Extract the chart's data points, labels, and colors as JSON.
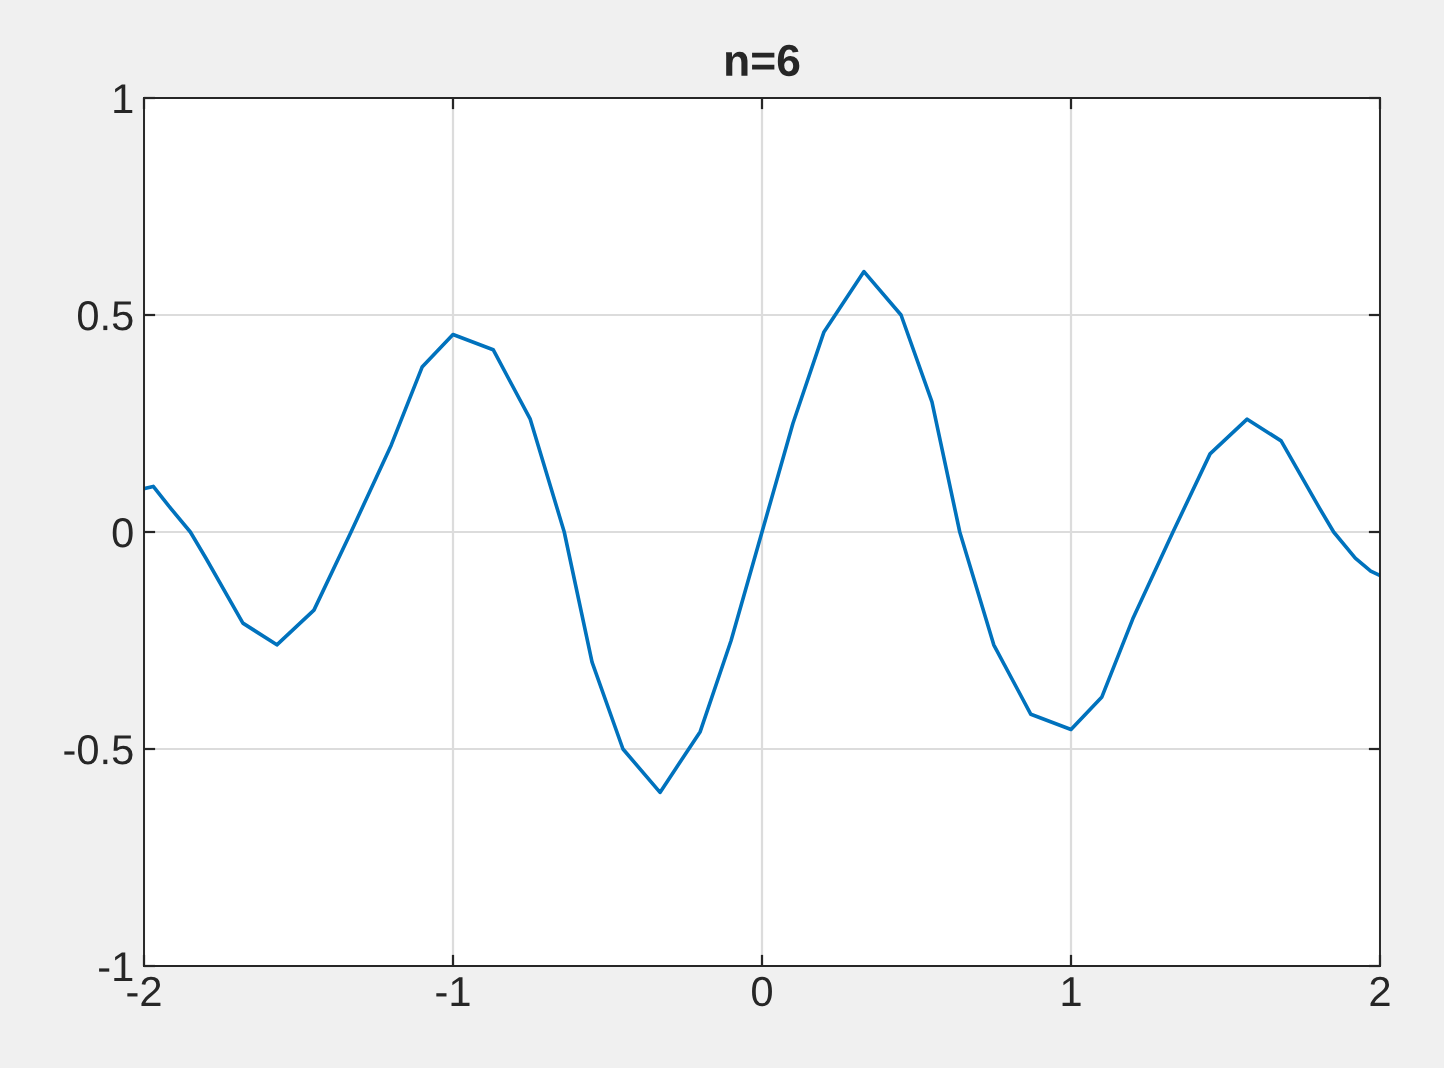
{
  "chart_data": {
    "type": "line",
    "title": "n=6",
    "x": [
      -2,
      -1.97,
      -1.92,
      -1.85,
      -1.8,
      -1.68,
      -1.57,
      -1.45,
      -1.33,
      -1.2,
      -1.1,
      -1,
      -0.87,
      -0.75,
      -0.64,
      -0.55,
      -0.45,
      -0.33,
      -0.2,
      -0.1,
      0,
      0.1,
      0.2,
      0.33,
      0.45,
      0.55,
      0.64,
      0.75,
      0.87,
      1,
      1.1,
      1.2,
      1.33,
      1.45,
      1.57,
      1.68,
      1.8,
      1.85,
      1.92,
      1.97,
      2
    ],
    "series": [
      {
        "color": "#0072bd",
        "values": [
          0.1,
          0.105,
          0.06,
          0,
          -0.06,
          -0.21,
          -0.26,
          -0.18,
          0,
          0.2,
          0.38,
          0.455,
          0.42,
          0.26,
          0,
          -0.3,
          -0.5,
          -0.6,
          -0.46,
          -0.25,
          0,
          0.25,
          0.46,
          0.6,
          0.5,
          0.3,
          0,
          -0.26,
          -0.42,
          -0.455,
          -0.38,
          -0.2,
          0,
          0.18,
          0.26,
          0.21,
          0.06,
          0,
          -0.06,
          -0.09,
          -0.1
        ]
      }
    ],
    "xlim": [
      -2,
      2
    ],
    "xticks": [
      -2,
      -1,
      0,
      1,
      2
    ],
    "ylim": [
      -1,
      1
    ],
    "yticks": [
      -1,
      -0.5,
      0,
      0.5,
      1
    ],
    "grid": true,
    "marker": "none",
    "line_style": "solid"
  }
}
